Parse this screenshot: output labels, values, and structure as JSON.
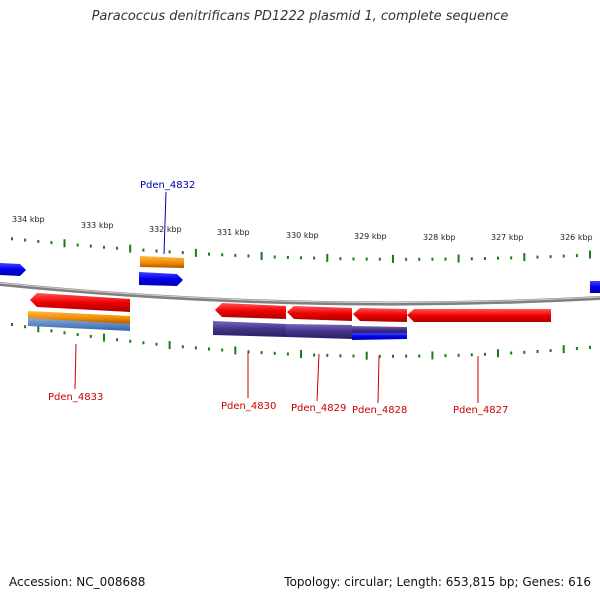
{
  "title": "Paracoccus denitrificans PD1222 plasmid 1, complete sequence",
  "footer": {
    "accession": "Accession: NC_008688",
    "summary": "Topology: circular; Length: 653,815 bp; Genes: 616"
  },
  "ruler": {
    "labels": [
      "334 kbp",
      "333 kbp",
      "332 kbp",
      "331 kbp",
      "330 kbp",
      "329 kbp",
      "328 kbp",
      "327 kbp",
      "326 kbp"
    ]
  },
  "genes": [
    {
      "id": "Pden_4832",
      "color": "#0000aa"
    },
    {
      "id": "Pden_4833",
      "color": "#cc0000"
    },
    {
      "id": "Pden_4830",
      "color": "#cc0000"
    },
    {
      "id": "Pden_4829",
      "color": "#cc0000"
    },
    {
      "id": "Pden_4828",
      "color": "#cc0000"
    },
    {
      "id": "Pden_4827",
      "color": "#cc0000"
    }
  ],
  "colors": {
    "cds": "#ee0000",
    "gene": "#0000ee",
    "orange_feature": "#ee8800",
    "purple_feature": "#443388",
    "backbone": "#777777",
    "tick": "#1a7a1a"
  }
}
